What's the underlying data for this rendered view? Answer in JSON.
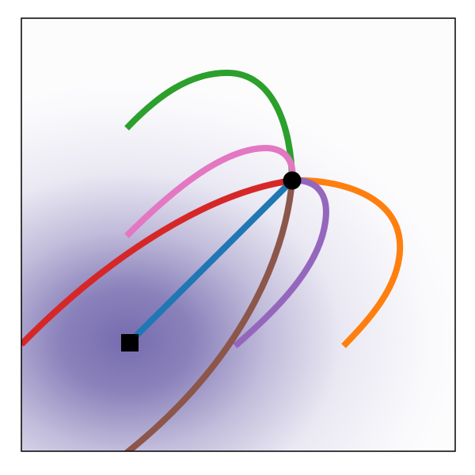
{
  "figure": {
    "type": "trajectory-diagram",
    "background": {
      "kind": "radial-density",
      "color": "#6a5fa8"
    },
    "frame_color": "#000000",
    "start_marker": {
      "shape": "circle",
      "color": "#000000"
    },
    "target_marker": {
      "shape": "square",
      "color": "#000000"
    },
    "paths": [
      {
        "id": "blue",
        "color": "#1f77b4",
        "description": "straight"
      },
      {
        "id": "red",
        "color": "#d62728"
      },
      {
        "id": "pink",
        "color": "#e377c2"
      },
      {
        "id": "green",
        "color": "#2ca02c"
      },
      {
        "id": "orange",
        "color": "#ff7f0e"
      },
      {
        "id": "purple",
        "color": "#9467bd"
      },
      {
        "id": "brown",
        "color": "#8c564b"
      }
    ]
  }
}
